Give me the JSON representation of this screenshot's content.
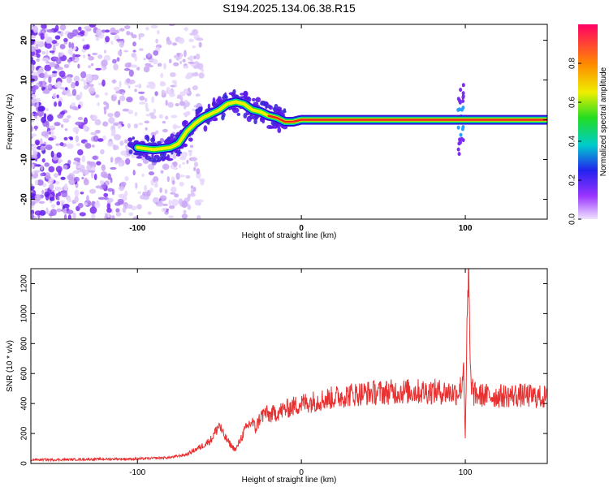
{
  "title": "S194.2025.134.06.38.R15",
  "chart_data": [
    {
      "type": "heatmap",
      "xlabel": "Height of straight line (km)",
      "ylabel": "Frequency (Hz)",
      "xlim": [
        -165,
        150
      ],
      "ylim": [
        -25,
        24
      ],
      "x_ticks": [
        "-100",
        "0",
        "100"
      ],
      "x_tick_values": [
        -100,
        0,
        100
      ],
      "y_ticks": [
        "20",
        "10",
        "0",
        "-10",
        "-20"
      ],
      "y_tick_values": [
        20,
        10,
        0,
        -10,
        -20
      ],
      "colorbar": {
        "label": "Normalized spectral amplitude",
        "ticks": [
          "0.0",
          "0.2",
          "0.4",
          "0.6",
          "0.8"
        ],
        "tick_values": [
          0.0,
          0.2,
          0.4,
          0.6,
          0.8
        ],
        "range": [
          0,
          1
        ]
      },
      "ridge": {
        "x": [
          -100,
          -90,
          -80,
          -75,
          -70,
          -65,
          -60,
          -55,
          -50,
          -45,
          -40,
          -35,
          -30,
          -25,
          -20,
          -15,
          -10,
          -5,
          0,
          10,
          40,
          60,
          90,
          95,
          100,
          120,
          150
        ],
        "y": [
          -7,
          -7.5,
          -7,
          -6,
          -3,
          -1,
          0.5,
          1.5,
          2.5,
          4,
          4.5,
          4,
          2.5,
          2,
          1,
          0.5,
          -0.5,
          -0.5,
          0,
          0,
          0,
          0,
          0,
          0,
          0,
          0,
          0
        ]
      }
    },
    {
      "type": "line",
      "xlabel": "Height of straight line (km)",
      "ylabel": "SNR (10 * v/v)",
      "xlim": [
        -165,
        150
      ],
      "ylim": [
        0,
        1300
      ],
      "x_ticks": [
        "-100",
        "0",
        "100"
      ],
      "x_tick_values": [
        -100,
        0,
        100
      ],
      "y_ticks": [
        "0",
        "200",
        "400",
        "600",
        "800",
        "1000",
        "1200"
      ],
      "y_tick_values": [
        0,
        200,
        400,
        600,
        800,
        1000,
        1200
      ],
      "series": [
        {
          "color": "#e83030",
          "x": [
            -165,
            -150,
            -130,
            -110,
            -100,
            -90,
            -80,
            -70,
            -65,
            -60,
            -55,
            -52,
            -50,
            -48,
            -45,
            -42,
            -40,
            -38,
            -35,
            -32,
            -30,
            -28,
            -25,
            -22,
            -20,
            -15,
            -10,
            -5,
            0,
            10,
            20,
            30,
            40,
            50,
            60,
            70,
            80,
            90,
            95,
            98,
            99,
            100,
            101,
            102,
            103,
            105,
            110,
            120,
            130,
            140,
            150
          ],
          "y": [
            25,
            25,
            28,
            30,
            30,
            35,
            40,
            60,
            90,
            120,
            160,
            220,
            260,
            200,
            150,
            110,
            90,
            140,
            210,
            260,
            280,
            230,
            310,
            340,
            320,
            340,
            360,
            380,
            400,
            420,
            440,
            460,
            470,
            475,
            480,
            480,
            480,
            475,
            470,
            520,
            700,
            150,
            850,
            1300,
            600,
            460,
            455,
            450,
            455,
            450,
            440
          ]
        }
      ]
    }
  ]
}
